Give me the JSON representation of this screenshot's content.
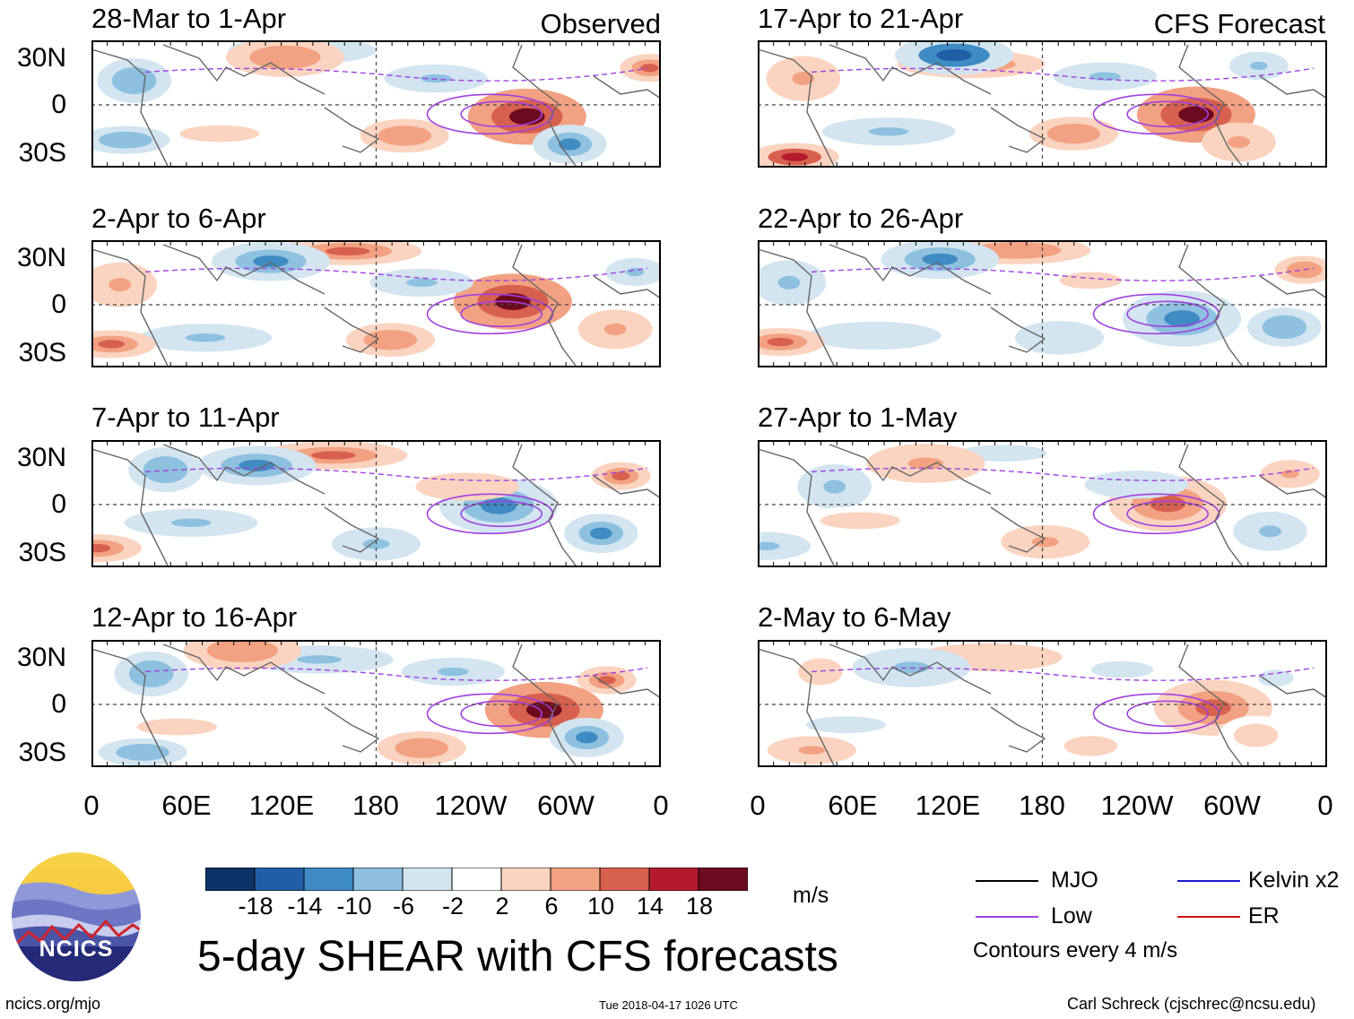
{
  "figure_title": "5-day SHEAR with CFS forecasts",
  "observed_label": "Observed",
  "forecast_label": "CFS Forecast",
  "units": "m/s",
  "footer": {
    "site": "ncics.org/mjo",
    "timestamp": "Tue 2018-04-17 1026 UTC",
    "credit": "Carl Schreck (cjschrec@ncsu.edu)"
  },
  "logo": {
    "text": "NCICS"
  },
  "legend": {
    "items": [
      {
        "label": "MJO",
        "color": "#000000"
      },
      {
        "label": "Kelvin x2",
        "color": "#1a1ad0"
      },
      {
        "label": "Low",
        "color": "#a040e0"
      },
      {
        "label": "ER",
        "color": "#d01010"
      }
    ],
    "note": "Contours every 4 m/s"
  },
  "colorbar": {
    "colors": [
      "#0c3366",
      "#205fa6",
      "#3f8bc4",
      "#8ec0df",
      "#d2e5f1",
      "#ffffff",
      "#fad4c0",
      "#f2a182",
      "#d8604f",
      "#b41a2e",
      "#6c0a1f"
    ],
    "ticks": [
      "-18",
      "-14",
      "-10",
      "-6",
      "-2",
      "2",
      "6",
      "10",
      "14",
      "18"
    ]
  },
  "chart_data": {
    "type": "heatmap",
    "variable": "5-day vertical wind shear anomaly",
    "units": "m/s",
    "lat_ticks": [
      "30N",
      "0",
      "30S"
    ],
    "lon_ticks": [
      "0",
      "60E",
      "120E",
      "180",
      "120W",
      "60W",
      "0"
    ],
    "panels": [
      {
        "column": "Observed",
        "period": "28-Mar to 1-Apr",
        "extra_label": "Observed"
      },
      {
        "column": "Observed",
        "period": "2-Apr to 6-Apr"
      },
      {
        "column": "Observed",
        "period": "7-Apr to 11-Apr"
      },
      {
        "column": "Observed",
        "period": "12-Apr to 16-Apr"
      },
      {
        "column": "CFS Forecast",
        "period": "17-Apr to 21-Apr",
        "extra_label": "CFS Forecast"
      },
      {
        "column": "CFS Forecast",
        "period": "22-Apr to 26-Apr"
      },
      {
        "column": "CFS Forecast",
        "period": "27-Apr to 1-May"
      },
      {
        "column": "CFS Forecast",
        "period": "2-May to 6-May"
      }
    ]
  }
}
